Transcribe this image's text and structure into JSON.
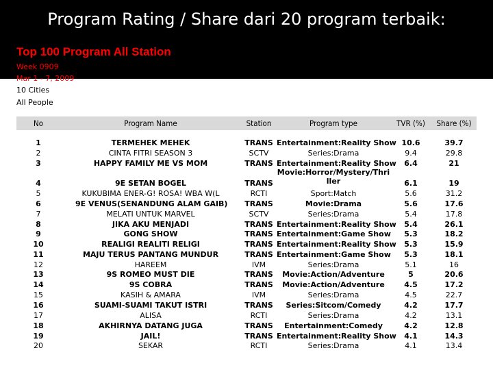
{
  "slide": {
    "title": "Program Rating / Share dari 20 program terbaik:",
    "subtitle": "Top 100 Program All Station",
    "week": "Week 0909",
    "dates": "Mar 1 - 7, 2009",
    "cities": "10 Cities",
    "audience": "All People"
  },
  "colors": {
    "band": "#000000",
    "accent": "#ff0000",
    "header_bg": "#d9d9d9"
  },
  "table": {
    "headers": [
      "No",
      "Program Name",
      "Station",
      "Program type",
      "TVR (%)",
      "Share (%)"
    ],
    "rows": [
      {
        "no": "1",
        "name": "TERMEHEK MEHEK",
        "station": "TRANS",
        "type": "Entertainment:Reality Show",
        "tvr": "10.6",
        "share": "39.7",
        "bold": true
      },
      {
        "no": "2",
        "name": "CINTA FITRI SEASON 3",
        "station": "SCTV",
        "type": "Series:Drama",
        "tvr": "9.4",
        "share": "29.8",
        "bold": false
      },
      {
        "no": "3",
        "name": "HAPPY FAMILY ME VS MOM",
        "station": "TRANS",
        "type": "Entertainment:Reality Show",
        "tvr": "6.4",
        "share": "21",
        "bold": true
      },
      {
        "no": "4",
        "name": "9E SETAN BOGEL",
        "station": "TRANS",
        "type": "Movie:Horror/Mystery/Thriller",
        "tvr": "6.1",
        "share": "19",
        "bold": true
      },
      {
        "no": "5",
        "name": "KUKUBIMA ENER-G! ROSA! WBA W(L",
        "station": "RCTI",
        "type": "Sport:Match",
        "tvr": "5.6",
        "share": "31.2",
        "bold": false
      },
      {
        "no": "6",
        "name": "9E VENUS(SENANDUNG ALAM GAIB)",
        "station": "TRANS",
        "type": "Movie:Drama",
        "tvr": "5.6",
        "share": "17.6",
        "bold": true
      },
      {
        "no": "7",
        "name": "MELATI UNTUK MARVEL",
        "station": "SCTV",
        "type": "Series:Drama",
        "tvr": "5.4",
        "share": "17.8",
        "bold": false
      },
      {
        "no": "8",
        "name": "JIKA AKU MENJADI",
        "station": "TRANS",
        "type": "Entertainment:Reality Show",
        "tvr": "5.4",
        "share": "26.1",
        "bold": true
      },
      {
        "no": "9",
        "name": "GONG SHOW",
        "station": "TRANS",
        "type": "Entertainment:Game Show",
        "tvr": "5.3",
        "share": "18.2",
        "bold": true
      },
      {
        "no": "10",
        "name": "REALIGI REALITI RELIGI",
        "station": "TRANS",
        "type": "Entertainment:Reality Show",
        "tvr": "5.3",
        "share": "15.9",
        "bold": true
      },
      {
        "no": "11",
        "name": "MAJU TERUS PANTANG MUNDUR",
        "station": "TRANS",
        "type": "Entertainment:Game Show",
        "tvr": "5.3",
        "share": "18.1",
        "bold": true
      },
      {
        "no": "12",
        "name": "HAREEM",
        "station": "IVM",
        "type": "Series:Drama",
        "tvr": "5.1",
        "share": "16",
        "bold": false
      },
      {
        "no": "13",
        "name": "9S ROMEO MUST DIE",
        "station": "TRANS",
        "type": "Movie:Action/Adventure",
        "tvr": "5",
        "share": "20.6",
        "bold": true
      },
      {
        "no": "14",
        "name": "9S COBRA",
        "station": "TRANS",
        "type": "Movie:Action/Adventure",
        "tvr": "4.5",
        "share": "17.2",
        "bold": true
      },
      {
        "no": "15",
        "name": "KASIH & AMARA",
        "station": "IVM",
        "type": "Series:Drama",
        "tvr": "4.5",
        "share": "22.7",
        "bold": false
      },
      {
        "no": "16",
        "name": "SUAMI-SUAMI TAKUT ISTRI",
        "station": "TRANS",
        "type": "Series:Sitcom/Comedy",
        "tvr": "4.2",
        "share": "17.7",
        "bold": true
      },
      {
        "no": "17",
        "name": "ALISA",
        "station": "RCTI",
        "type": "Series:Drama",
        "tvr": "4.2",
        "share": "13.1",
        "bold": false
      },
      {
        "no": "18",
        "name": "AKHIRNYA DATANG JUGA",
        "station": "TRANS",
        "type": "Entertainment:Comedy",
        "tvr": "4.2",
        "share": "12.8",
        "bold": true
      },
      {
        "no": "19",
        "name": "JAIL!",
        "station": "TRANS",
        "type": "Entertainment:Reality Show",
        "tvr": "4.1",
        "share": "14.3",
        "bold": true
      },
      {
        "no": "20",
        "name": "SEKAR",
        "station": "RCTI",
        "type": "Series:Drama",
        "tvr": "4.1",
        "share": "13.4",
        "bold": false
      }
    ]
  }
}
